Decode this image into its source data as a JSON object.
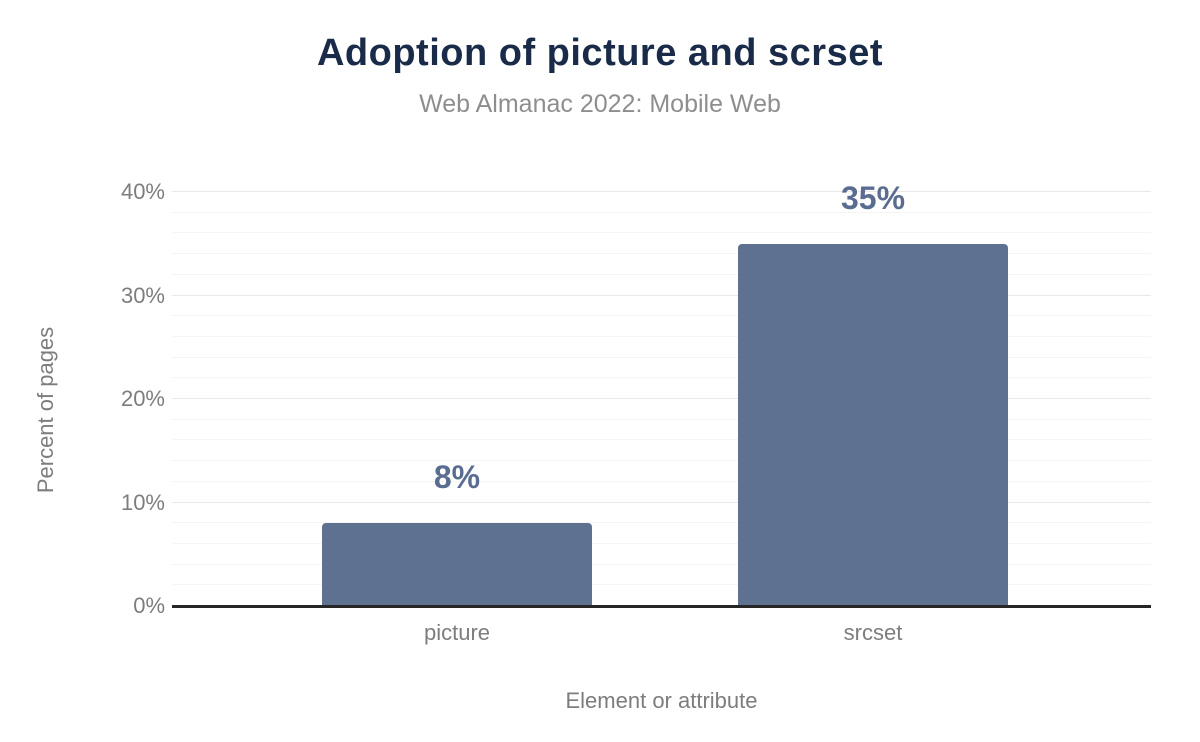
{
  "chart_data": {
    "type": "bar",
    "title": "Adoption of picture and scrset",
    "subtitle": "Web Almanac 2022: Mobile Web",
    "categories": [
      "picture",
      "srcset"
    ],
    "values": [
      8,
      35
    ],
    "value_labels": [
      "8%",
      "35%"
    ],
    "xlabel": "Element or attribute",
    "ylabel": "Percent of pages",
    "ylim": [
      0,
      40
    ],
    "yticks": [
      0,
      10,
      20,
      30,
      40
    ],
    "ytick_labels": [
      "0%",
      "10%",
      "20%",
      "30%",
      "40%"
    ],
    "grid": "on",
    "grid_major_step": 10,
    "grid_minor_step": 2,
    "legend": "none",
    "colors": {
      "bar": "#5f7190",
      "value_label": "#5a6d91",
      "title": "#1a2b49",
      "subtitle": "#8e8e8e",
      "axis_text": "#7d7d7d",
      "axis_line": "#262626",
      "grid_major": "#e9e9e9",
      "grid_minor": "#f5f5f5",
      "background": "#ffffff"
    }
  }
}
